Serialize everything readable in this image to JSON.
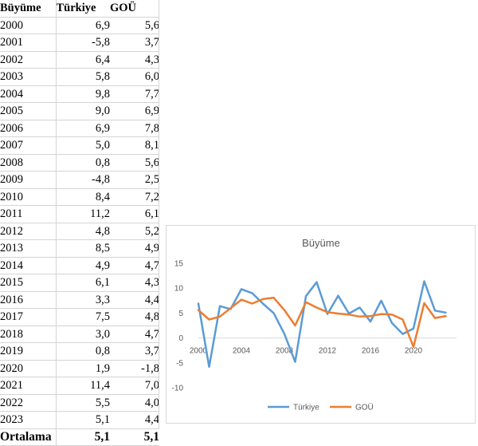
{
  "table": {
    "headers": [
      "Büyüme",
      "Türkiye",
      "GOÜ"
    ],
    "rows": [
      [
        "2000",
        "6,9",
        "5,6"
      ],
      [
        "2001",
        "-5,8",
        "3,7"
      ],
      [
        "2002",
        "6,4",
        "4,3"
      ],
      [
        "2003",
        "5,8",
        "6,0"
      ],
      [
        "2004",
        "9,8",
        "7,7"
      ],
      [
        "2005",
        "9,0",
        "6,9"
      ],
      [
        "2006",
        "6,9",
        "7,8"
      ],
      [
        "2007",
        "5,0",
        "8,1"
      ],
      [
        "2008",
        "0,8",
        "5,6"
      ],
      [
        "2009",
        "-4,8",
        "2,5"
      ],
      [
        "2010",
        "8,4",
        "7,2"
      ],
      [
        "2011",
        "11,2",
        "6,1"
      ],
      [
        "2012",
        "4,8",
        "5,2"
      ],
      [
        "2013",
        "8,5",
        "4,9"
      ],
      [
        "2014",
        "4,9",
        "4,7"
      ],
      [
        "2015",
        "6,1",
        "4,3"
      ],
      [
        "2016",
        "3,3",
        "4,4"
      ],
      [
        "2017",
        "7,5",
        "4,8"
      ],
      [
        "2018",
        "3,0",
        "4,7"
      ],
      [
        "2019",
        "0,8",
        "3,7"
      ],
      [
        "2020",
        "1,9",
        "-1,8"
      ],
      [
        "2021",
        "11,4",
        "7,0"
      ],
      [
        "2022",
        "5,5",
        "4,0"
      ],
      [
        "2023",
        "5,1",
        "4,4"
      ]
    ],
    "average": [
      "Ortalama",
      "5,1",
      "5,1"
    ]
  },
  "chart_data": {
    "type": "line",
    "title": "Büyüme",
    "x": [
      2000,
      2001,
      2002,
      2003,
      2004,
      2005,
      2006,
      2007,
      2008,
      2009,
      2010,
      2011,
      2012,
      2013,
      2014,
      2015,
      2016,
      2017,
      2018,
      2019,
      2020,
      2021,
      2022,
      2023
    ],
    "series": [
      {
        "name": "Türkiye",
        "color": "#5B9BD5",
        "values": [
          6.9,
          -5.8,
          6.4,
          5.8,
          9.8,
          9.0,
          6.9,
          5.0,
          0.8,
          -4.8,
          8.4,
          11.2,
          4.8,
          8.5,
          4.9,
          6.1,
          3.3,
          7.5,
          3.0,
          0.8,
          1.9,
          11.4,
          5.5,
          5.1
        ]
      },
      {
        "name": "GOÜ",
        "color": "#ED7D31",
        "values": [
          5.6,
          3.7,
          4.3,
          6.0,
          7.7,
          6.9,
          7.8,
          8.1,
          5.6,
          2.5,
          7.2,
          6.1,
          5.2,
          4.9,
          4.7,
          4.3,
          4.4,
          4.8,
          4.7,
          3.7,
          -1.8,
          7.0,
          4.0,
          4.4
        ]
      }
    ],
    "xlim": [
      2000,
      2024
    ],
    "ylim": [
      -10,
      15
    ],
    "xticks": [
      "2000",
      "2004",
      "2008",
      "2012",
      "2016",
      "2020"
    ],
    "yticks": [
      "15",
      "10",
      "5",
      "0",
      "-5",
      "-10"
    ],
    "grid": false,
    "legend_position": "bottom"
  }
}
